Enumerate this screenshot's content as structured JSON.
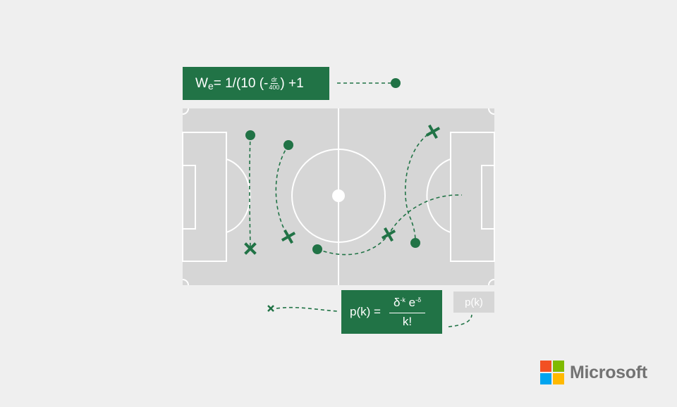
{
  "formula_top": {
    "prefix": "W",
    "subscript": "e",
    "middle": " = 1/(10 (-",
    "frac_num": "dr",
    "frac_den": "400",
    "suffix": ") +1"
  },
  "formula_bottom": {
    "lhs": "p(k) =",
    "num_base1": "δ",
    "num_exp1": "-k",
    "num_base2": " e",
    "num_exp2": "-δ",
    "den": "k!"
  },
  "pk_tag": "p(k)",
  "brand": {
    "name": "Microsoft",
    "colors": {
      "red": "#f25022",
      "green": "#7fba00",
      "blue": "#00a4ef",
      "yellow": "#ffb900"
    }
  },
  "colors": {
    "accent_green": "#217346",
    "pitch": "#d6d6d6",
    "background": "#efefef"
  },
  "icons": [
    "player-dot-icon",
    "cross-marker-icon"
  ]
}
